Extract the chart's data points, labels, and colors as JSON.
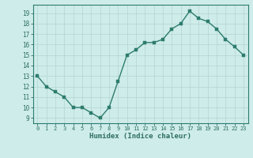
{
  "x": [
    0,
    1,
    2,
    3,
    4,
    5,
    6,
    7,
    8,
    9,
    10,
    11,
    12,
    13,
    14,
    15,
    16,
    17,
    18,
    19,
    20,
    21,
    22,
    23
  ],
  "y": [
    13,
    12,
    11.5,
    11,
    10,
    10,
    9.5,
    9,
    10,
    12.5,
    15,
    15.5,
    16.2,
    16.2,
    16.5,
    17.5,
    18,
    19.2,
    18.5,
    18.2,
    17.5,
    16.5,
    15.8,
    15
  ],
  "line_color": "#2d7c6e",
  "marker_color": "#2d7c6e",
  "bg_color": "#ceecea",
  "grid_color": "#b8d8d5",
  "xlabel": "Humidex (Indice chaleur)",
  "ylim": [
    8.5,
    19.8
  ],
  "xlim": [
    -0.5,
    23.5
  ],
  "yticks": [
    9,
    10,
    11,
    12,
    13,
    14,
    15,
    16,
    17,
    18,
    19
  ],
  "xticks": [
    0,
    1,
    2,
    3,
    4,
    5,
    6,
    7,
    8,
    9,
    10,
    11,
    12,
    13,
    14,
    15,
    16,
    17,
    18,
    19,
    20,
    21,
    22,
    23
  ],
  "font_color": "#2d6e62",
  "axis_color": "#2d7c6e",
  "linewidth": 1.0,
  "markersize": 2.5
}
